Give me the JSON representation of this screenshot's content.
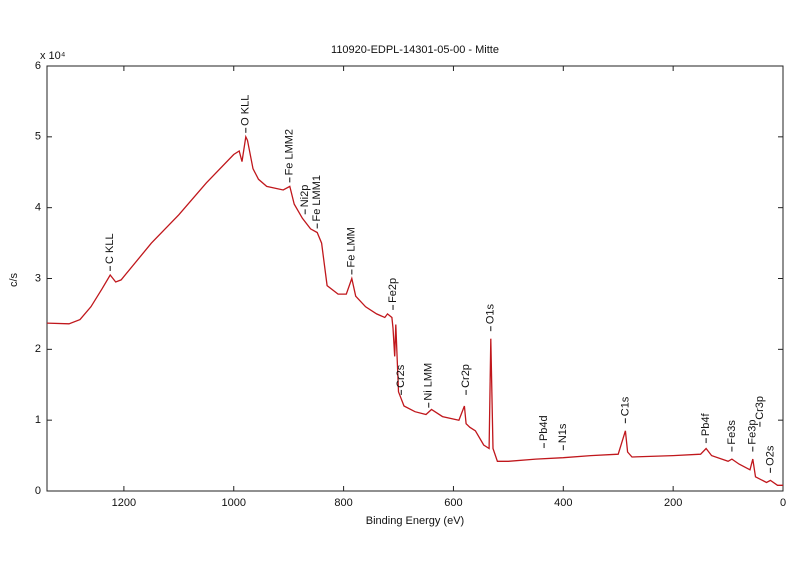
{
  "chart_data": {
    "type": "line",
    "title": "110920-EDPL-14301-05-00 - Mitte",
    "xlabel": "Binding Energy (eV)",
    "ylabel": "c/s",
    "y_multiplier": "x 10⁴",
    "xlim": [
      1340,
      0
    ],
    "xticks": [
      1200,
      1000,
      800,
      600,
      400,
      200,
      0
    ],
    "ylim": [
      0,
      6
    ],
    "yticks": [
      0,
      1,
      2,
      3,
      4,
      5,
      6
    ],
    "x": [
      1340,
      1300,
      1280,
      1260,
      1240,
      1225,
      1215,
      1205,
      1150,
      1100,
      1050,
      1000,
      990,
      985,
      978,
      975,
      965,
      955,
      940,
      910,
      898,
      890,
      875,
      860,
      848,
      840,
      830,
      810,
      795,
      785,
      778,
      760,
      740,
      725,
      720,
      712,
      710,
      707,
      705,
      700,
      690,
      670,
      650,
      640,
      620,
      590,
      580,
      577,
      570,
      560,
      545,
      535,
      532,
      528,
      520,
      500,
      450,
      400,
      350,
      300,
      287,
      283,
      275,
      200,
      150,
      140,
      130,
      100,
      93,
      80,
      60,
      55,
      50,
      30,
      23,
      10,
      0
    ],
    "series": [
      {
        "color": "#c0171c",
        "values": [
          2.37,
          2.36,
          2.42,
          2.6,
          2.85,
          3.05,
          2.95,
          2.98,
          3.5,
          3.9,
          4.35,
          4.75,
          4.8,
          4.65,
          5.0,
          4.95,
          4.55,
          4.4,
          4.3,
          4.25,
          4.3,
          4.05,
          3.85,
          3.7,
          3.65,
          3.5,
          2.9,
          2.78,
          2.78,
          3.0,
          2.75,
          2.6,
          2.5,
          2.45,
          2.5,
          2.45,
          2.3,
          1.9,
          2.35,
          1.4,
          1.2,
          1.12,
          1.08,
          1.15,
          1.05,
          1.0,
          1.2,
          0.95,
          0.9,
          0.85,
          0.65,
          0.6,
          2.15,
          0.6,
          0.42,
          0.42,
          0.45,
          0.47,
          0.5,
          0.52,
          0.85,
          0.55,
          0.48,
          0.5,
          0.52,
          0.6,
          0.5,
          0.42,
          0.45,
          0.38,
          0.3,
          0.45,
          0.2,
          0.12,
          0.15,
          0.08,
          0.08
        ]
      }
    ],
    "annotations": [
      {
        "text": "C KLL",
        "x": 1225,
        "y": 3.05
      },
      {
        "text": "O KLL",
        "x": 978,
        "y": 5.0
      },
      {
        "text": "Fe LMM2",
        "x": 898,
        "y": 4.3
      },
      {
        "text": "Ni2p",
        "x": 870,
        "y": 3.85
      },
      {
        "text": "Fe LMM1",
        "x": 848,
        "y": 3.65
      },
      {
        "text": "Fe LMM",
        "x": 785,
        "y": 3.0
      },
      {
        "text": "Fe2p",
        "x": 710,
        "y": 2.5
      },
      {
        "text": "Cr2s",
        "x": 695,
        "y": 1.3
      },
      {
        "text": "Ni LMM",
        "x": 645,
        "y": 1.12
      },
      {
        "text": "Cr2p",
        "x": 577,
        "y": 1.3
      },
      {
        "text": "O1s",
        "x": 532,
        "y": 2.2
      },
      {
        "text": "Pb4d",
        "x": 435,
        "y": 0.55
      },
      {
        "text": "N1s",
        "x": 400,
        "y": 0.52
      },
      {
        "text": "C1s",
        "x": 287,
        "y": 0.9
      },
      {
        "text": "Pb4f",
        "x": 140,
        "y": 0.62
      },
      {
        "text": "Fe3s",
        "x": 93,
        "y": 0.5
      },
      {
        "text": "Fe3p",
        "x": 55,
        "y": 0.5
      },
      {
        "text": "Cr3p",
        "x": 42,
        "y": 0.85
      },
      {
        "text": "O2s",
        "x": 23,
        "y": 0.2
      }
    ]
  }
}
